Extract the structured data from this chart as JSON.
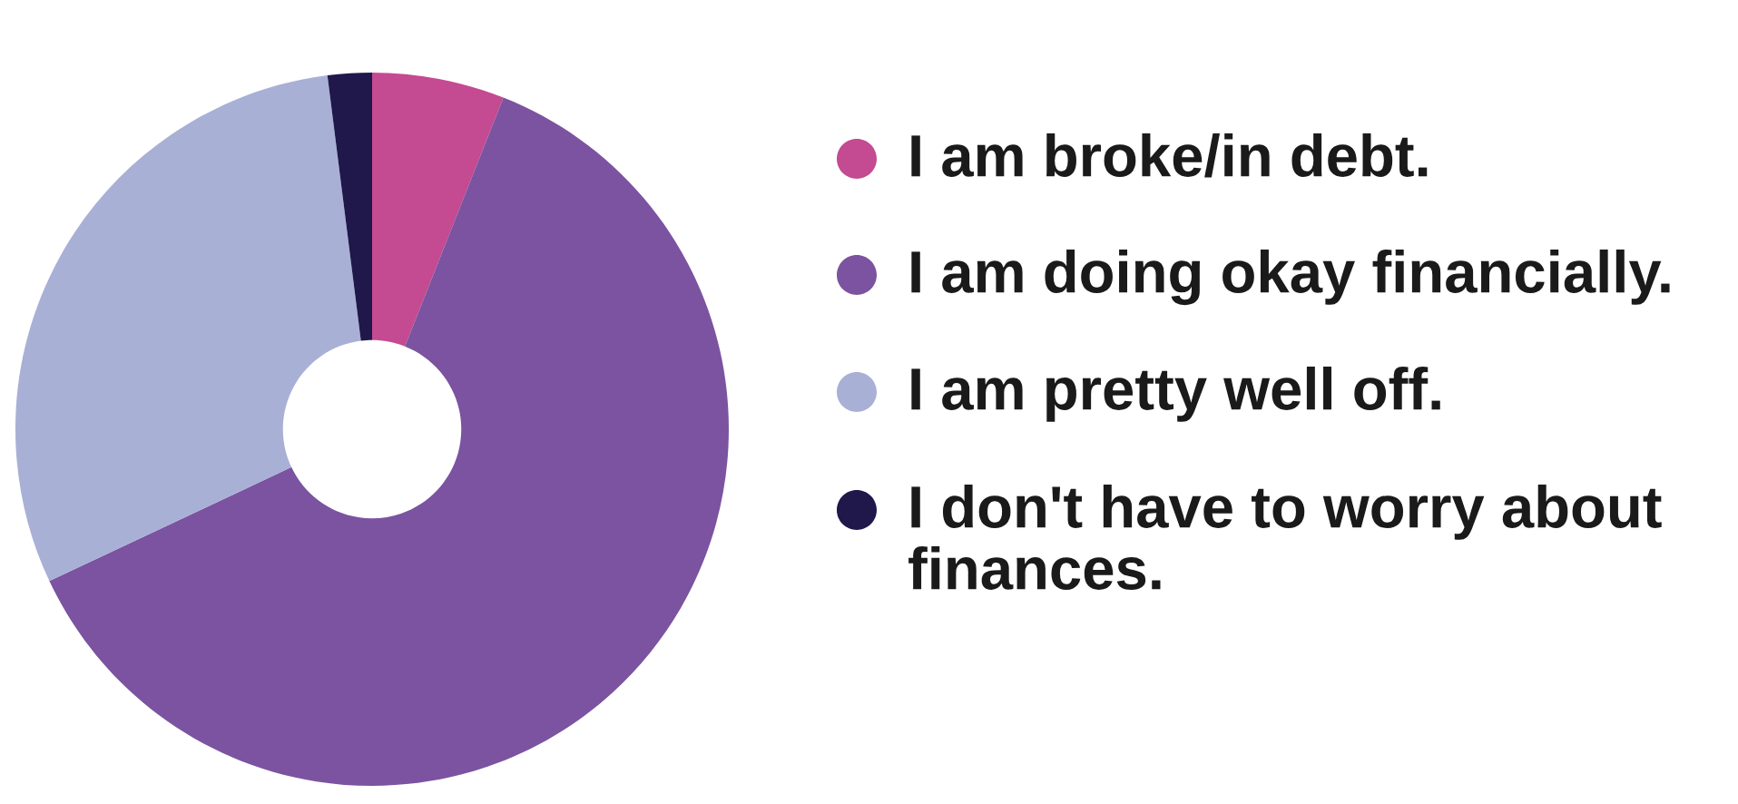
{
  "chart_data": {
    "type": "donut",
    "categories": [
      "I am broke/in debt.",
      "I am doing okay financially.",
      "I am pretty well off.",
      "I don't have to worry about finances."
    ],
    "values": [
      6,
      62,
      30,
      2
    ],
    "colors": [
      "#c44a91",
      "#7b53a0",
      "#a9b0d6",
      "#20174a"
    ],
    "legend": "right"
  }
}
